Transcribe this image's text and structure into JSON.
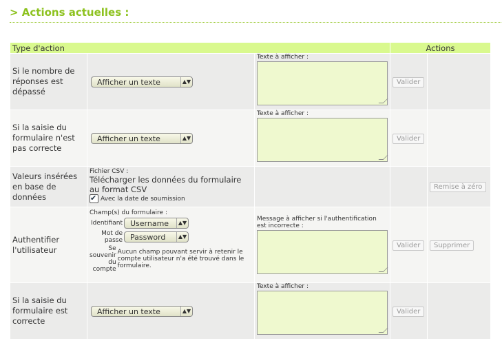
{
  "title": "> Actions actuelles :",
  "colors": {
    "accent": "#8dc21f",
    "header_bg": "#d9f98e",
    "textarea_bg": "#eff9cf"
  },
  "headers": {
    "type": "Type d'action",
    "actions": "Actions"
  },
  "rows": [
    {
      "type": "Si le nombre de réponses est dépassé",
      "select": "Afficher un texte",
      "text_label": "Texte à afficher :",
      "validate": "Valider"
    },
    {
      "type": "Si la saisie du formulaire n'est pas correcte",
      "select": "Afficher un texte",
      "text_label": "Texte à afficher :",
      "validate": "Valider"
    },
    {
      "type": "Valeurs insérées en base de données",
      "csv_label": "Fichier CSV :",
      "csv_link": "Télécharger les données du formulaire au format CSV",
      "checkbox_label": "Avec la date de soumission",
      "checked": true,
      "reset": "Remise à zéro"
    },
    {
      "type": "Authentifier l'utilisateur",
      "fields_label": "Champ(s) du formulaire :",
      "id_label": "Identifiant",
      "id_value": "Username",
      "pw_label": "Mot de passe",
      "pw_value": "Password",
      "remember_label": "Se souvenir du compte",
      "remember_note": "Aucun champ pouvant servir à retenir le compte utilisateur n'a été trouvé dans le formulaire.",
      "text_label": "Message à afficher si l'authentification est incorrecte :",
      "validate": "Valider",
      "delete": "Supprimer"
    },
    {
      "type": "Si la saisie du formulaire est correcte",
      "select": "Afficher un texte",
      "text_label": "Texte à afficher :",
      "validate": "Valider"
    }
  ]
}
